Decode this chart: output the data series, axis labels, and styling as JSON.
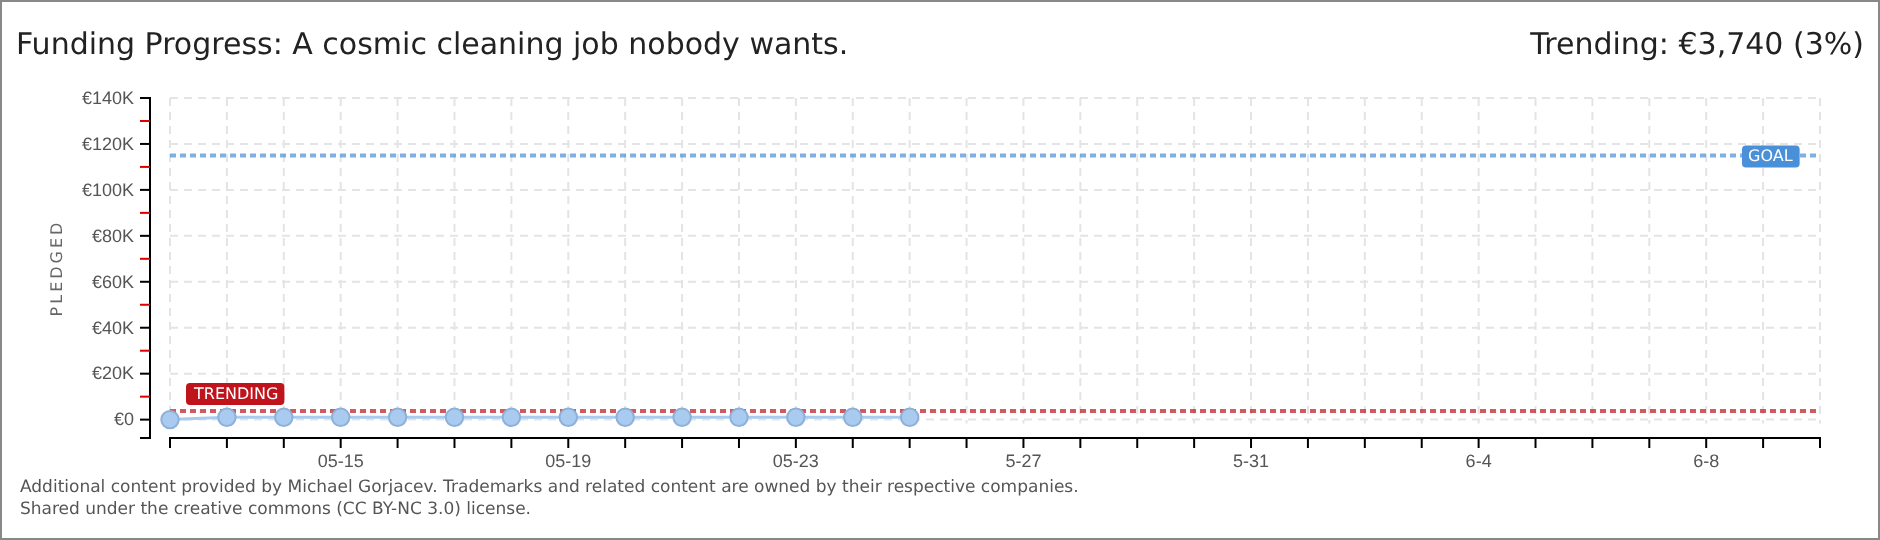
{
  "chart_data": {
    "type": "line",
    "title": "Funding Progress: A cosmic cleaning job nobody wants.",
    "subtitle": "Trending: €3,740 (3%)",
    "ylabel": "PLEDGED",
    "x": [
      "--05-12",
      "--05-13",
      "--05-14",
      "--05-15",
      "--05-16",
      "--05-17",
      "--05-18",
      "--05-19",
      "--05-20",
      "--05-21",
      "--05-22",
      "--05-23",
      "--05-24",
      "--05-25"
    ],
    "series": [
      {
        "color": "#a9cbf0",
        "values": [
          0,
          1000,
          1000,
          1000,
          1000,
          1000,
          1000,
          1000,
          1000,
          1000,
          1000,
          1000,
          1000,
          1000
        ]
      }
    ],
    "marker": "circle",
    "grid": true,
    "xlim": [
      "--05-12",
      "--06-10"
    ],
    "xticks": [
      {
        "value": "--05-12",
        "label": null
      },
      {
        "value": "--05-13",
        "label": null
      },
      {
        "value": "--05-14",
        "label": null
      },
      {
        "value": "--05-15",
        "label": "05-15"
      },
      {
        "value": "--05-16",
        "label": null
      },
      {
        "value": "--05-17",
        "label": null
      },
      {
        "value": "--05-18",
        "label": null
      },
      {
        "value": "--05-19",
        "label": "05-19"
      },
      {
        "value": "--05-20",
        "label": null
      },
      {
        "value": "--05-21",
        "label": null
      },
      {
        "value": "--05-22",
        "label": null
      },
      {
        "value": "--05-23",
        "label": "05-23"
      },
      {
        "value": "--05-24",
        "label": null
      },
      {
        "value": "--05-25",
        "label": null
      },
      {
        "value": "--05-26",
        "label": null
      },
      {
        "value": "--05-27",
        "label": "5-27"
      },
      {
        "value": "--05-28",
        "label": null
      },
      {
        "value": "--05-29",
        "label": null
      },
      {
        "value": "--05-30",
        "label": null
      },
      {
        "value": "--05-31",
        "label": "5-31"
      },
      {
        "value": "--06-01",
        "label": null
      },
      {
        "value": "--06-02",
        "label": null
      },
      {
        "value": "--06-03",
        "label": null
      },
      {
        "value": "--06-04",
        "label": "6-4"
      },
      {
        "value": "--06-05",
        "label": null
      },
      {
        "value": "--06-06",
        "label": null
      },
      {
        "value": "--06-07",
        "label": null
      },
      {
        "value": "--06-08",
        "label": "6-8"
      },
      {
        "value": "--06-09",
        "label": null
      },
      {
        "value": "--06-10",
        "label": null
      }
    ],
    "ylim": [
      -8000,
      140000
    ],
    "yticks": [
      {
        "value": 0,
        "label": "€0"
      },
      {
        "value": 10000,
        "label": null
      },
      {
        "value": 20000,
        "label": "€20K"
      },
      {
        "value": 30000,
        "label": null
      },
      {
        "value": 40000,
        "label": "€40K"
      },
      {
        "value": 50000,
        "label": null
      },
      {
        "value": 60000,
        "label": "€60K"
      },
      {
        "value": 70000,
        "label": null
      },
      {
        "value": 80000,
        "label": "€80K"
      },
      {
        "value": 90000,
        "label": null
      },
      {
        "value": 100000,
        "label": "€100K"
      },
      {
        "value": 110000,
        "label": null
      },
      {
        "value": 120000,
        "label": "€120K"
      },
      {
        "value": 130000,
        "label": null
      },
      {
        "value": 140000,
        "label": "€140K"
      }
    ],
    "ref_lines": [
      {
        "axis": "y",
        "value": 115000,
        "label": "GOAL",
        "color": "#4a90d9",
        "line_style": "dotted"
      },
      {
        "axis": "y",
        "value": 3740,
        "label": "TRENDING",
        "color": "#c0141c",
        "line_style": "dotted"
      }
    ],
    "annotations": [
      "Additional content provided by Michael Gorjacev. Trademarks and related content are owned by their respective companies.",
      "Shared under the creative commons (CC BY-NC 3.0) license."
    ]
  }
}
